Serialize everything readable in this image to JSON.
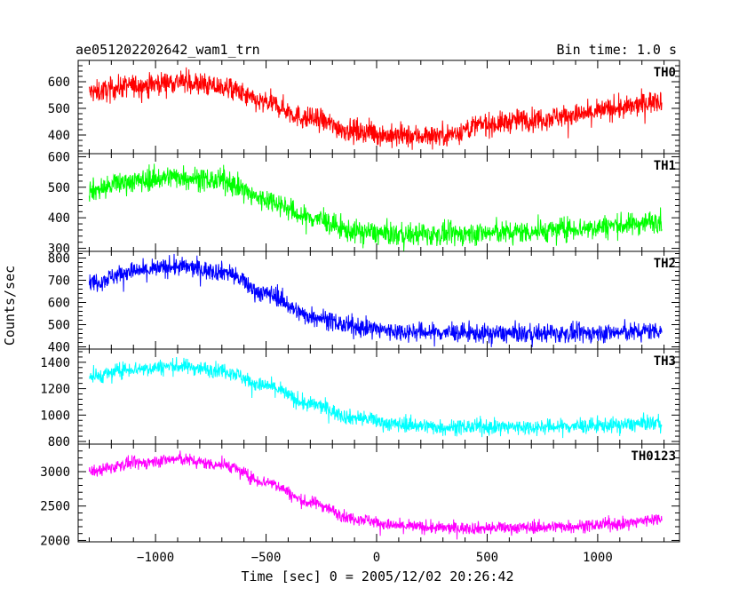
{
  "header": {
    "left_title": "ae051202202642_wam1_trn",
    "right_title": "Bin time: 1.0 s"
  },
  "chart_data": [
    {
      "type": "line",
      "series": [
        {
          "name": "TH0",
          "color": "#ff0000"
        }
      ],
      "ylim": [
        330,
        680
      ],
      "yticks": [
        400,
        500,
        600
      ],
      "envelope": {
        "x": [
          -1300,
          -1100,
          -900,
          -700,
          -500,
          -300,
          -100,
          100,
          300,
          500,
          700,
          900,
          1100,
          1290
        ],
        "mean": [
          560,
          585,
          600,
          580,
          520,
          460,
          415,
          395,
          400,
          440,
          460,
          475,
          500,
          530
        ],
        "amplitude": 40
      }
    },
    {
      "type": "line",
      "series": [
        {
          "name": "TH1",
          "color": "#00ff00"
        }
      ],
      "ylim": [
        290,
        610
      ],
      "yticks": [
        300,
        400,
        500,
        600
      ],
      "envelope": {
        "x": [
          -1300,
          -1100,
          -900,
          -700,
          -500,
          -300,
          -100,
          100,
          300,
          500,
          700,
          900,
          1100,
          1290
        ],
        "mean": [
          490,
          520,
          535,
          520,
          460,
          400,
          355,
          345,
          345,
          350,
          355,
          365,
          375,
          390
        ],
        "amplitude": 35
      }
    },
    {
      "type": "line",
      "series": [
        {
          "name": "TH2",
          "color": "#0000ff"
        }
      ],
      "ylim": [
        390,
        830
      ],
      "yticks": [
        400,
        500,
        600,
        700,
        800
      ],
      "envelope": {
        "x": [
          -1300,
          -1100,
          -900,
          -700,
          -500,
          -300,
          -100,
          100,
          300,
          500,
          700,
          900,
          1100,
          1290
        ],
        "mean": [
          690,
          740,
          760,
          740,
          640,
          540,
          490,
          470,
          465,
          460,
          460,
          460,
          465,
          475
        ],
        "amplitude": 40
      }
    },
    {
      "type": "line",
      "series": [
        {
          "name": "TH3",
          "color": "#00ffff"
        }
      ],
      "ylim": [
        780,
        1500
      ],
      "yticks": [
        800,
        1000,
        1200,
        1400
      ],
      "envelope": {
        "x": [
          -1300,
          -1100,
          -900,
          -700,
          -500,
          -300,
          -100,
          100,
          300,
          500,
          700,
          900,
          1100,
          1290
        ],
        "mean": [
          1290,
          1350,
          1370,
          1340,
          1220,
          1080,
          980,
          930,
          910,
          910,
          910,
          915,
          925,
          945
        ],
        "amplitude": 55
      }
    },
    {
      "type": "line",
      "series": [
        {
          "name": "TH0123",
          "color": "#ff00ff"
        }
      ],
      "ylim": [
        1980,
        3400
      ],
      "yticks": [
        2000,
        2500,
        3000
      ],
      "envelope": {
        "x": [
          -1300,
          -1100,
          -900,
          -700,
          -500,
          -300,
          -100,
          100,
          300,
          500,
          700,
          900,
          1100,
          1290
        ],
        "mean": [
          3000,
          3120,
          3180,
          3100,
          2850,
          2550,
          2320,
          2210,
          2180,
          2180,
          2190,
          2210,
          2240,
          2320
        ],
        "amplitude": 85
      }
    }
  ],
  "x_axis": {
    "label": "Time [sec] 0 = 2005/12/02 20:26:42",
    "xlim": [
      -1350,
      1370
    ],
    "major_ticks": [
      -1000,
      -500,
      0,
      500,
      1000
    ],
    "tick_labels": [
      "−1000",
      "−500",
      "0",
      "500",
      "1000"
    ],
    "minor_step": 100
  },
  "y_axis": {
    "label": "Counts/sec"
  }
}
